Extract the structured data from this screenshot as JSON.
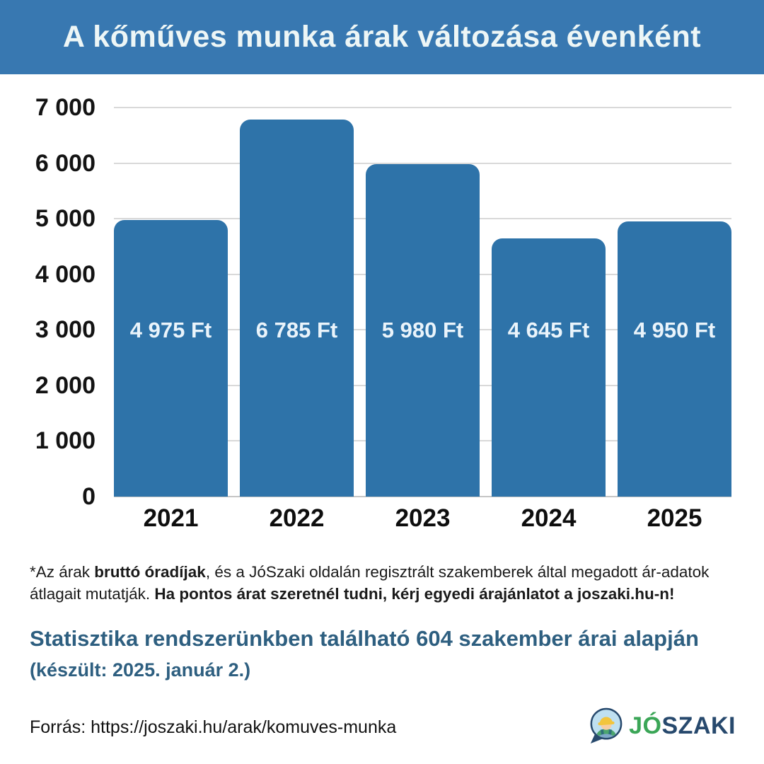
{
  "header": {
    "title": "A kőműves munka árak változása évenként",
    "bg_color": "#3878B1",
    "text_color": "#EDF6F6"
  },
  "chart_data": {
    "type": "bar",
    "categories": [
      "2021",
      "2022",
      "2023",
      "2024",
      "2025"
    ],
    "values": [
      4975,
      6785,
      5980,
      4645,
      4950
    ],
    "bar_labels": [
      "4 975 Ft",
      "6 785 Ft",
      "5 980 Ft",
      "4 645 Ft",
      "4 950 Ft"
    ],
    "unit": "Ft",
    "y_ticks": [
      "7 000",
      "6 000",
      "5 000",
      "4 000",
      "3 000",
      "2 000",
      "1 000",
      "0"
    ],
    "ylim": [
      0,
      7000
    ],
    "grid": true,
    "legend": "none",
    "bar_color": "#2E73A9",
    "bar_label_color": "#EAF4FB",
    "gridline_color": "#D9D9D9"
  },
  "footnote": {
    "part1": "*Az árak ",
    "bold1": "bruttó óradíjak",
    "part2": ", és a JóSzaki oldalán regisztrált szakemberek által megadott ár-adatok átlagait mutatják. ",
    "bold2": "Ha pontos árat szeretnél tudni, kérj egyedi árajánlatot a joszaki.hu-n!"
  },
  "stats": {
    "line1": "Statisztika rendszerünkben található 604 szakember árai alapján",
    "line2": "(készült: 2025. január 2.)",
    "color": "#2E5F80"
  },
  "source": {
    "text": "Forrás: https://joszaki.hu/arak/komuves-munka"
  },
  "logo": {
    "part1": "JÓ",
    "part2": "SZAKI",
    "green": "#3BA657",
    "navy": "#27496D"
  }
}
